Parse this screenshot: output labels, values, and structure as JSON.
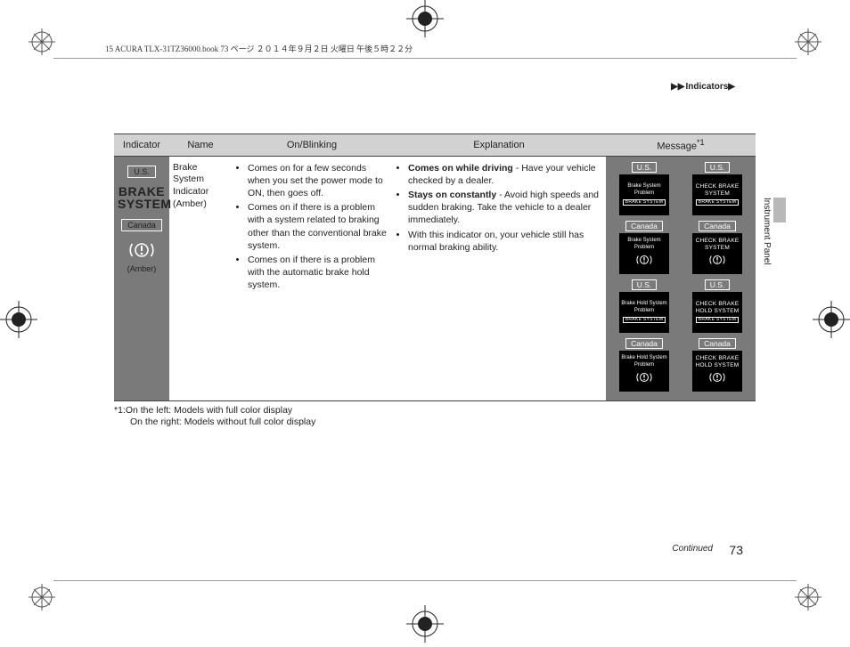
{
  "book_header": "15 ACURA TLX-31TZ36000.book  73 ページ  ２０１４年９月２日  火曜日  午後５時２２分",
  "breadcrumb": {
    "tri": "▶▶",
    "label": "Indicators",
    "tail": "▶"
  },
  "section_tab": "Instrument Panel",
  "columns": {
    "c1": "Indicator",
    "c2": "Name",
    "c3": "On/Blinking",
    "c4": "Explanation",
    "c5_label": "Message",
    "c5_sup": "*1"
  },
  "row": {
    "indicator": {
      "region_top": "U.S.",
      "brake_line1": "BRAKE",
      "brake_line2": "SYSTEM",
      "region_bottom": "Canada",
      "amber_label": "(Amber)"
    },
    "name": "Brake System Indicator (Amber)",
    "on_blinking": [
      "Comes on for a few seconds when you set the power mode to ON, then goes off.",
      "Comes on if there is a problem with a system related to braking other than the conventional brake system.",
      "Comes on if there is a problem with the automatic brake hold system."
    ],
    "explanation": [
      {
        "bold": "Comes on while driving",
        "rest": " - Have your vehicle checked by a dealer."
      },
      {
        "bold": "Stays on constantly",
        "rest": " - Avoid high speeds and sudden braking. Take the vehicle to a dealer immediately."
      },
      {
        "bold": "",
        "rest": "With this indicator on, your vehicle still has normal braking ability."
      }
    ],
    "messages": {
      "left": [
        {
          "region": "U.S.",
          "lines": [
            "Brake System",
            "Problem"
          ],
          "tag": true
        },
        {
          "region": "Canada",
          "lines": [
            "Brake System",
            "Problem"
          ],
          "icon": true
        },
        {
          "region": "U.S.",
          "lines": [
            "Brake Hold System",
            "Problem"
          ],
          "tag": true
        },
        {
          "region": "Canada",
          "lines": [
            "Brake Hold System",
            "Problem"
          ],
          "icon": true
        }
      ],
      "right": [
        {
          "region": "U.S.",
          "alt": "CHECK BRAKE SYSTEM",
          "tag": true
        },
        {
          "region": "Canada",
          "alt": "CHECK BRAKE SYSTEM",
          "icon": true
        },
        {
          "region": "U.S.",
          "alt": "CHECK BRAKE HOLD SYSTEM",
          "tag": true
        },
        {
          "region": "Canada",
          "alt": "CHECK BRAKE HOLD SYSTEM",
          "icon": true
        }
      ]
    }
  },
  "footnote_line1": "*1:On the left: Models with full color display",
  "footnote_line2": "On the right: Models without full color display",
  "continued": "Continued",
  "page_number": "73",
  "colors": {
    "header_bg": "#d2d2d2",
    "dark_cell": "#7a7a7a",
    "rule": "#444444",
    "black": "#000000"
  }
}
